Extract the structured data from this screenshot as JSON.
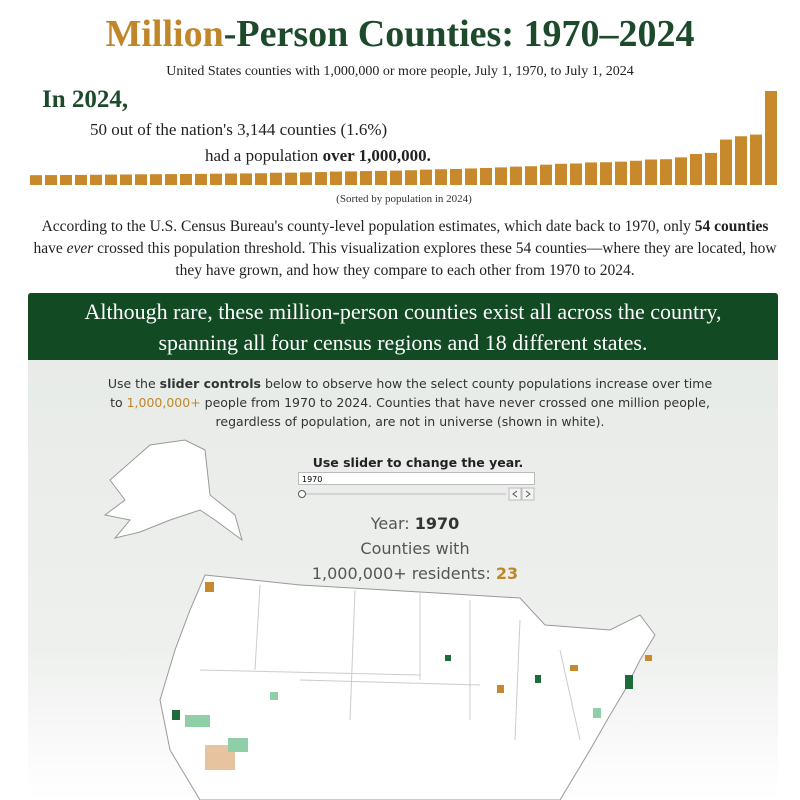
{
  "header": {
    "title_part1": "Million",
    "title_part2": "-Person Counties: 1970–2024",
    "subtitle": "United States counties with 1,000,000 or more people, July 1, 1970, to July 1, 2024"
  },
  "intro": {
    "year_line": "In 2024,",
    "line2": "50 out of the nation's 3,144 counties (1.6%)",
    "line3_prefix": "had a population ",
    "line3_bold": "over 1,000,000.",
    "note": "(Sorted by population in 2024)"
  },
  "chart_data": {
    "type": "bar",
    "color": "#c8892c",
    "values": [
      1.01,
      1.02,
      1.03,
      1.04,
      1.05,
      1.07,
      1.08,
      1.1,
      1.11,
      1.12,
      1.13,
      1.14,
      1.16,
      1.18,
      1.19,
      1.21,
      1.26,
      1.27,
      1.3,
      1.33,
      1.38,
      1.4,
      1.43,
      1.45,
      1.48,
      1.52,
      1.58,
      1.62,
      1.65,
      1.7,
      1.75,
      1.81,
      1.89,
      1.93,
      2.09,
      2.18,
      2.21,
      2.32,
      2.34,
      2.4,
      2.49,
      2.62,
      2.65,
      2.84,
      3.19,
      3.3,
      4.67,
      5.01,
      5.18,
      9.66
    ]
  },
  "paragraph": {
    "p1": "According to the U.S. Census Bureau's county-level population estimates, which date back to 1970, only ",
    "bold": "54 counties",
    "p2": " have ",
    "em": "ever",
    "p3": " crossed this population threshold. This visualization explores these 54 counties—where they are located, how they have grown, and how they compare to each other from 1970 to 2024."
  },
  "banner": {
    "line1": "Although rare, these million-person counties exist all across the country,",
    "line2": "spanning all four census regions and 18 different states."
  },
  "instructions": {
    "p1": "Use the ",
    "bold": "slider controls",
    "p2": " below to observe how the select county populations increase over time to ",
    "gold": "1,000,000+",
    "p3": " people from 1970 to 2024. Counties that have never crossed one million people, regardless of population, are not in universe (shown in white)."
  },
  "slider": {
    "label": "Use slider to change the year.",
    "input_value": "1970",
    "year_label": "Year: ",
    "year": "1970",
    "counties_line1": "Counties with",
    "counties_line2": "1,000,000+ residents: ",
    "count": "23"
  }
}
